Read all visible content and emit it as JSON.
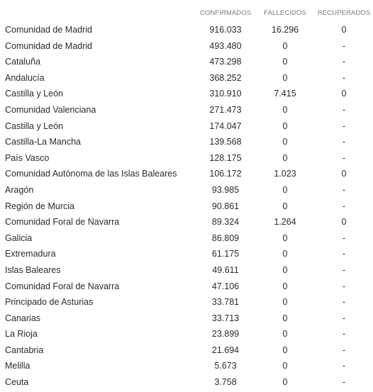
{
  "table": {
    "headers": {
      "confirmados": "CONFIRMADOS",
      "fallecidos": "FALLECIDOS",
      "recuperados": "RECUPERADOS"
    },
    "rows": [
      {
        "region": "Comunidad de Madrid",
        "confirmados": "916.033",
        "fallecidos": "16.296",
        "recuperados": "0"
      },
      {
        "region": "Comunidad de Madrid",
        "confirmados": "493.480",
        "fallecidos": "0",
        "recuperados": "-"
      },
      {
        "region": "Cataluña",
        "confirmados": "473.298",
        "fallecidos": "0",
        "recuperados": "-"
      },
      {
        "region": "Andalucía",
        "confirmados": "368.252",
        "fallecidos": "0",
        "recuperados": "-"
      },
      {
        "region": "Castilla y León",
        "confirmados": "310.910",
        "fallecidos": "7.415",
        "recuperados": "0"
      },
      {
        "region": "Comunidad Valenciana",
        "confirmados": "271.473",
        "fallecidos": "0",
        "recuperados": "-"
      },
      {
        "region": "Castilla y León",
        "confirmados": "174.047",
        "fallecidos": "0",
        "recuperados": "-"
      },
      {
        "region": "Castilla-La Mancha",
        "confirmados": "139.568",
        "fallecidos": "0",
        "recuperados": "-"
      },
      {
        "region": "País Vasco",
        "confirmados": "128.175",
        "fallecidos": "0",
        "recuperados": "-"
      },
      {
        "region": "Comunidad Autónoma de las Islas Baleares",
        "confirmados": "106.172",
        "fallecidos": "1.023",
        "recuperados": "0"
      },
      {
        "region": "Aragón",
        "confirmados": "93.985",
        "fallecidos": "0",
        "recuperados": "-"
      },
      {
        "region": "Región de Murcia",
        "confirmados": "90.861",
        "fallecidos": "0",
        "recuperados": "-"
      },
      {
        "region": "Comunidad Foral de Navarra",
        "confirmados": "89.324",
        "fallecidos": "1.264",
        "recuperados": "0"
      },
      {
        "region": "Galicia",
        "confirmados": "86.809",
        "fallecidos": "0",
        "recuperados": "-"
      },
      {
        "region": "Extremadura",
        "confirmados": "61.175",
        "fallecidos": "0",
        "recuperados": "-"
      },
      {
        "region": "Islas Baleares",
        "confirmados": "49.611",
        "fallecidos": "0",
        "recuperados": "-"
      },
      {
        "region": "Comunidad Foral de Navarra",
        "confirmados": "47.106",
        "fallecidos": "0",
        "recuperados": "-"
      },
      {
        "region": "Principado de Asturias",
        "confirmados": "33.781",
        "fallecidos": "0",
        "recuperados": "-"
      },
      {
        "region": "Canarias",
        "confirmados": "33.713",
        "fallecidos": "0",
        "recuperados": "-"
      },
      {
        "region": "La Rioja",
        "confirmados": "23.899",
        "fallecidos": "0",
        "recuperados": "-"
      },
      {
        "region": "Cantabria",
        "confirmados": "21.694",
        "fallecidos": "0",
        "recuperados": "-"
      },
      {
        "region": "Melilla",
        "confirmados": "5.673",
        "fallecidos": "0",
        "recuperados": "-"
      },
      {
        "region": "Ceuta",
        "confirmados": "3.758",
        "fallecidos": "0",
        "recuperados": "-"
      }
    ]
  }
}
